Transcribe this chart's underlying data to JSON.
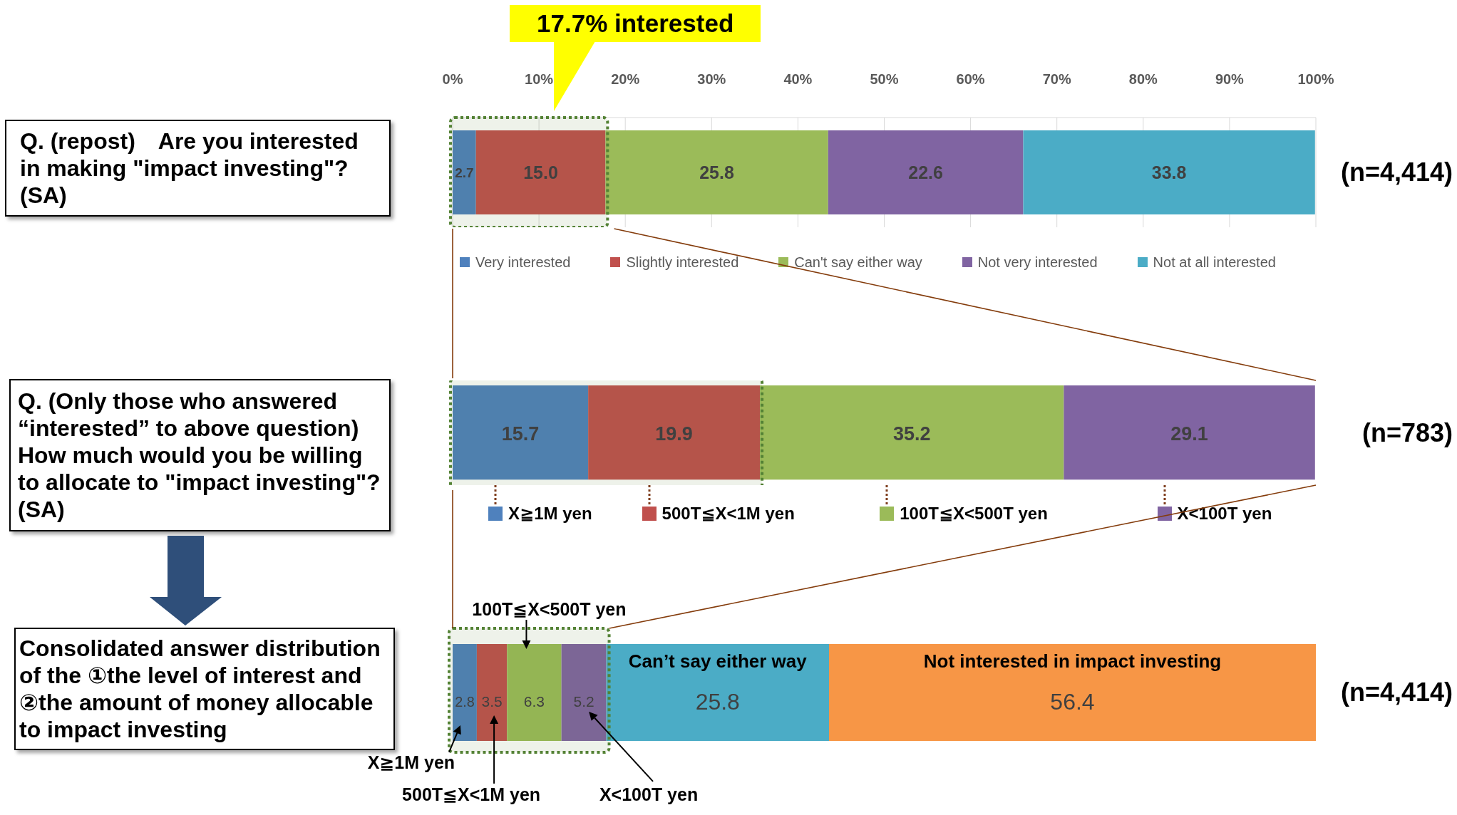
{
  "chart_data": [
    {
      "type": "bar",
      "orientation": "horizontal",
      "stacked": true,
      "categories": [
        "Q. (repost)　Are you interested in making \"impact investing\"? (SA)"
      ],
      "series": [
        {
          "name": "Very interested",
          "color": "#4f81bd",
          "values": [
            2.7
          ],
          "value_labels": [
            "2.7"
          ]
        },
        {
          "name": "Slightly interested",
          "color": "#c0504d",
          "values": [
            15.0
          ],
          "value_labels": [
            "15.0"
          ]
        },
        {
          "name": "Can't say either way",
          "color": "#9bbb59",
          "values": [
            25.8
          ],
          "value_labels": [
            "25.8"
          ]
        },
        {
          "name": "Not very interested",
          "color": "#8064a2",
          "values": [
            22.6
          ],
          "value_labels": [
            "22.6"
          ]
        },
        {
          "name": "Not at all interested",
          "color": "#4bacc6",
          "values": [
            33.8
          ],
          "value_labels": [
            "33.8"
          ]
        }
      ],
      "xlim": [
        0,
        100
      ],
      "xticks": [
        {
          "value": 0,
          "label": "0%"
        },
        {
          "value": 10,
          "label": "10%"
        },
        {
          "value": 20,
          "label": "20%"
        },
        {
          "value": 30,
          "label": "30%"
        },
        {
          "value": 40,
          "label": "40%"
        },
        {
          "value": 50,
          "label": "50%"
        },
        {
          "value": 60,
          "label": "60%"
        },
        {
          "value": 70,
          "label": "70%"
        },
        {
          "value": 80,
          "label": "80%"
        },
        {
          "value": 90,
          "label": "90%"
        },
        {
          "value": 100,
          "label": "100%"
        }
      ],
      "grid": "x",
      "legend": "bottom",
      "bands": [
        {
          "axis": "x",
          "from": 0,
          "to": 17.7,
          "color": "#548235"
        }
      ],
      "annotations": [
        "17.7% interested",
        "(n=4,414)"
      ]
    },
    {
      "type": "bar",
      "orientation": "horizontal",
      "stacked": true,
      "categories": [
        "Q. (Only those who answered “interested” to above question) How much would you be willing to allocate to \"impact investing\"? (SA)"
      ],
      "series": [
        {
          "name": "X≧1M yen",
          "color": "#4f81bd",
          "values": [
            15.7
          ],
          "value_labels": [
            "15.7"
          ]
        },
        {
          "name": "500T≦X<1M yen",
          "color": "#c0504d",
          "values": [
            19.9
          ],
          "value_labels": [
            "19.9"
          ]
        },
        {
          "name": "100T≦X<500T yen",
          "color": "#9bbb59",
          "values": [
            35.2
          ],
          "value_labels": [
            "35.2"
          ]
        },
        {
          "name": "X<100T yen",
          "color": "#8064a2",
          "values": [
            29.1
          ],
          "value_labels": [
            "29.1"
          ]
        }
      ],
      "xlim": [
        0,
        100
      ],
      "tick_labels": "y",
      "legend": "bottom",
      "bands": [
        {
          "axis": "x",
          "from": 0,
          "to": 35.6,
          "color": "#548235"
        }
      ],
      "annotations": [
        "(n=783)"
      ]
    },
    {
      "type": "bar",
      "orientation": "horizontal",
      "stacked": true,
      "categories": [
        "Consolidated answer distribution of the ①the level of interest and ②the amount of money allocable to impact investing"
      ],
      "series": [
        {
          "name": "X≧1M yen",
          "color": "#4f81bd",
          "values": [
            2.8
          ],
          "value_labels": [
            "2.8"
          ]
        },
        {
          "name": "500T≦X<1M yen",
          "color": "#c0504d",
          "values": [
            3.5
          ],
          "value_labels": [
            "3.5"
          ]
        },
        {
          "name": "100T≦X<500T yen",
          "color": "#9bbb59",
          "values": [
            6.3
          ],
          "value_labels": [
            "6.3"
          ]
        },
        {
          "name": "X<100T yen",
          "color": "#8064a2",
          "values": [
            5.2
          ],
          "value_labels": [
            "5.2"
          ]
        },
        {
          "name": "Can’t say either way",
          "color": "#4bacc6",
          "values": [
            25.8
          ],
          "value_labels": [
            "25.8"
          ]
        },
        {
          "name": "Not interested in impact investing",
          "color": "#f79646",
          "values": [
            56.4
          ],
          "value_labels": [
            "56.4"
          ]
        }
      ],
      "xlim": [
        0,
        100
      ],
      "tick_labels": "y",
      "bands": [
        {
          "axis": "x",
          "from": 0,
          "to": 17.8,
          "color": "#548235"
        }
      ],
      "annotations": [
        "(n=4,414)"
      ]
    }
  ]
}
